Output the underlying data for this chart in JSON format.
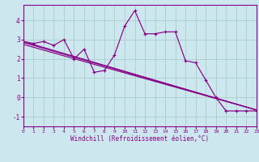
{
  "xlabel": "Windchill (Refroidissement éolien,°C)",
  "bg_color": "#cce8ee",
  "grid_color": "#aacccc",
  "line_color": "#880088",
  "xlim": [
    0,
    23
  ],
  "ylim": [
    -1.5,
    4.8
  ],
  "yticks": [
    -1,
    0,
    1,
    2,
    3,
    4
  ],
  "xticks": [
    0,
    1,
    2,
    3,
    4,
    5,
    6,
    7,
    8,
    9,
    10,
    11,
    12,
    13,
    14,
    15,
    16,
    17,
    18,
    19,
    20,
    21,
    22,
    23
  ],
  "series1_x": [
    0,
    1,
    2,
    3,
    4,
    5,
    6,
    7,
    8,
    9,
    10,
    11,
    12,
    13,
    14,
    15,
    16,
    17,
    18,
    19,
    20,
    21,
    22,
    23
  ],
  "series1_y": [
    2.9,
    2.8,
    2.9,
    2.7,
    3.0,
    2.0,
    2.5,
    1.3,
    1.4,
    2.2,
    3.7,
    4.5,
    3.3,
    3.3,
    3.4,
    3.4,
    1.9,
    1.8,
    0.9,
    0.0,
    -0.7,
    -0.7,
    -0.7,
    -0.7
  ],
  "line2_x0": 0,
  "line2_y0": 2.9,
  "line2_x1": 23,
  "line2_y1": -0.65,
  "line3_x0": 0,
  "line3_y0": 2.75,
  "line3_x1": 23,
  "line3_y1": -0.65,
  "line4_x0": 0,
  "line4_y0": 2.85,
  "line4_x1": 23,
  "line4_y1": -0.65
}
